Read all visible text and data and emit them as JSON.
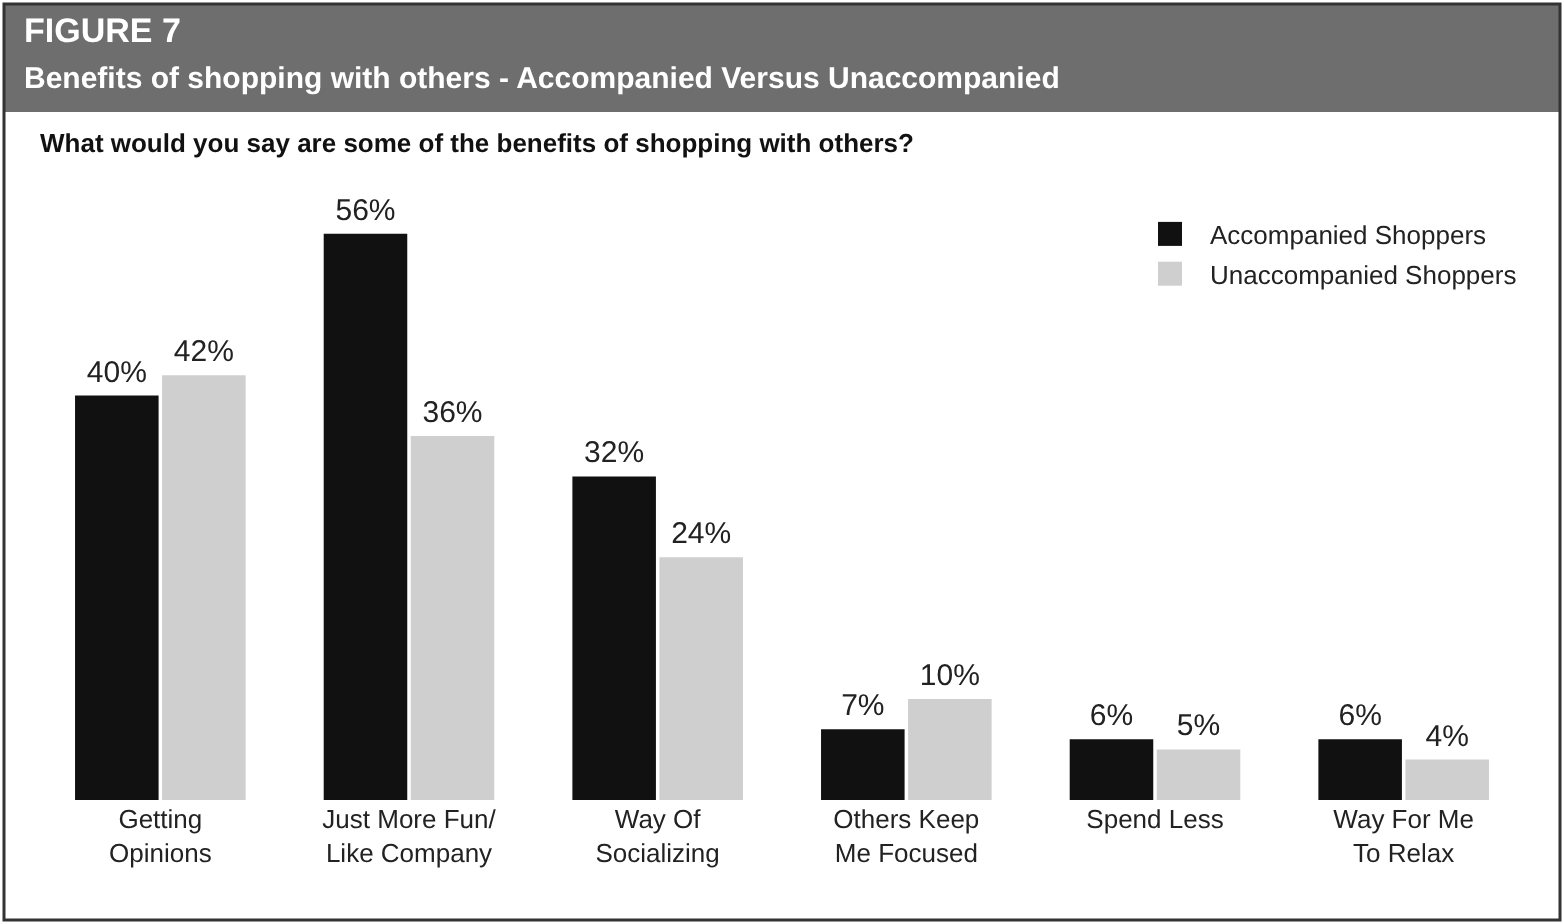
{
  "chart_data": {
    "type": "bar",
    "title": "FIGURE 7",
    "subtitle": "Benefits of shopping with others - Accompanied Versus Unaccompanied",
    "annotations": [
      "What would you say are some of the benefits of shopping with others?"
    ],
    "categories": [
      "Getting\nOpinions",
      "Just More Fun/\nLike Company",
      "Way Of\nSocializing",
      "Others Keep\nMe Focused",
      "Spend Less",
      "Way For Me\nTo Relax"
    ],
    "series": [
      {
        "name": "Accompanied Shoppers",
        "color": "#111111",
        "values": [
          40,
          56,
          32,
          7,
          6,
          6
        ],
        "value_labels": [
          "40%",
          "56%",
          "32%",
          "7%",
          "6%",
          "6%"
        ]
      },
      {
        "name": "Unaccompanied Shoppers",
        "color": "#cfcfcf",
        "values": [
          42,
          36,
          24,
          10,
          5,
          4
        ],
        "value_labels": [
          "42%",
          "36%",
          "24%",
          "10%",
          "5%",
          "4%"
        ]
      }
    ],
    "legend": "top right"
  }
}
